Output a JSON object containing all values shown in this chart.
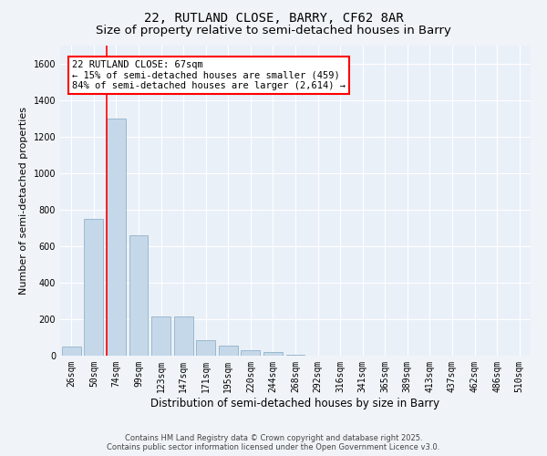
{
  "title": "22, RUTLAND CLOSE, BARRY, CF62 8AR",
  "subtitle": "Size of property relative to semi-detached houses in Barry",
  "xlabel": "Distribution of semi-detached houses by size in Barry",
  "ylabel": "Number of semi-detached properties",
  "categories": [
    "26sqm",
    "50sqm",
    "74sqm",
    "99sqm",
    "123sqm",
    "147sqm",
    "171sqm",
    "195sqm",
    "220sqm",
    "244sqm",
    "268sqm",
    "292sqm",
    "316sqm",
    "341sqm",
    "365sqm",
    "389sqm",
    "413sqm",
    "437sqm",
    "462sqm",
    "486sqm",
    "510sqm"
  ],
  "values": [
    50,
    750,
    1300,
    660,
    215,
    215,
    85,
    55,
    30,
    20,
    5,
    2,
    1,
    0,
    0,
    0,
    0,
    0,
    0,
    0,
    0
  ],
  "bar_color": "#c5d8ea",
  "bar_edge_color": "#9ab8cc",
  "red_line_x": 1.57,
  "annotation_text": "22 RUTLAND CLOSE: 67sqm\n← 15% of semi-detached houses are smaller (459)\n84% of semi-detached houses are larger (2,614) →",
  "ylim": [
    0,
    1700
  ],
  "yticks": [
    0,
    200,
    400,
    600,
    800,
    1000,
    1200,
    1400,
    1600
  ],
  "footer_line1": "Contains HM Land Registry data © Crown copyright and database right 2025.",
  "footer_line2": "Contains public sector information licensed under the Open Government Licence v3.0.",
  "bg_color": "#f0f4f8",
  "plot_bg_color": "#eaf0f8",
  "grid_color": "#ffffff",
  "title_fontsize": 10,
  "subtitle_fontsize": 9.5,
  "tick_fontsize": 7,
  "ylabel_fontsize": 8,
  "xlabel_fontsize": 8.5,
  "annotation_fontsize": 7.5,
  "footer_fontsize": 6
}
